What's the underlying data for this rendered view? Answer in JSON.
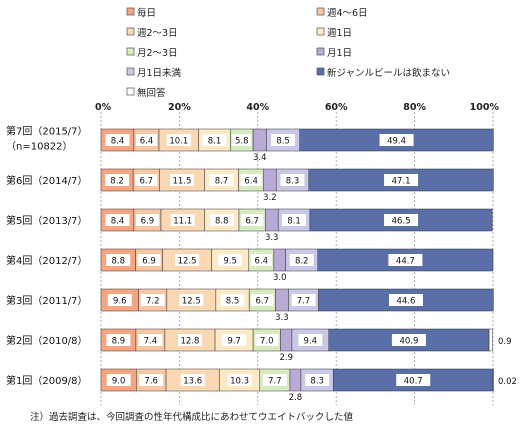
{
  "chart_data": {
    "type": "bar",
    "orientation": "horizontal",
    "stacked": true,
    "xlim": [
      0,
      100
    ],
    "x_ticks": [
      "0%",
      "20%",
      "40%",
      "60%",
      "80%",
      "100%"
    ],
    "grid": true,
    "legend_position": "top",
    "categories": [
      [
        "第7回（2015/7）",
        "（n=10822）"
      ],
      [
        "第6回（2014/7）"
      ],
      [
        "第5回（2013/7）"
      ],
      [
        "第4回（2012/7）"
      ],
      [
        "第3回（2011/7）"
      ],
      [
        "第2回（2010/8）"
      ],
      [
        "第1回（2009/8）"
      ]
    ],
    "series": [
      {
        "name": "毎日",
        "color": "#f4a582",
        "values": [
          8.4,
          8.2,
          8.4,
          8.8,
          9.6,
          8.9,
          9.0
        ]
      },
      {
        "name": "週4～6日",
        "color": "#f7c7a3",
        "values": [
          6.4,
          6.7,
          6.9,
          6.9,
          7.2,
          7.4,
          7.6
        ]
      },
      {
        "name": "週2～3日",
        "color": "#fad8b4",
        "values": [
          10.1,
          11.5,
          11.1,
          12.5,
          12.5,
          12.8,
          13.6
        ]
      },
      {
        "name": "週1日",
        "color": "#fde9c6",
        "values": [
          8.1,
          8.7,
          8.8,
          9.5,
          8.5,
          9.7,
          10.3
        ]
      },
      {
        "name": "月2～3日",
        "color": "#d6ebc0",
        "values": [
          5.8,
          6.4,
          6.7,
          6.4,
          6.7,
          7.0,
          7.7
        ]
      },
      {
        "name": "月1日",
        "color": "#b8a9d6",
        "values": [
          3.4,
          3.2,
          3.3,
          3.0,
          3.3,
          2.9,
          2.8
        ]
      },
      {
        "name": "月1日未満",
        "color": "#c7c7e6",
        "values": [
          8.5,
          8.3,
          8.1,
          8.2,
          7.7,
          9.4,
          8.3
        ]
      },
      {
        "name": "新ジャンルビールは飲まない",
        "color": "#5a6ea8",
        "values": [
          49.4,
          47.1,
          46.5,
          44.7,
          44.6,
          40.9,
          40.7
        ]
      },
      {
        "name": "無回答",
        "color": "#ffffff",
        "values": [
          0,
          0,
          0,
          0,
          0,
          0.9,
          0.02
        ]
      }
    ],
    "outside_labels": [
      {
        "row": 5,
        "text": "0.9"
      },
      {
        "row": 6,
        "text": "0.02"
      }
    ],
    "note": "注）過去調査は、今回調査の性年代構成比にあわせてウエイトバックした値"
  }
}
